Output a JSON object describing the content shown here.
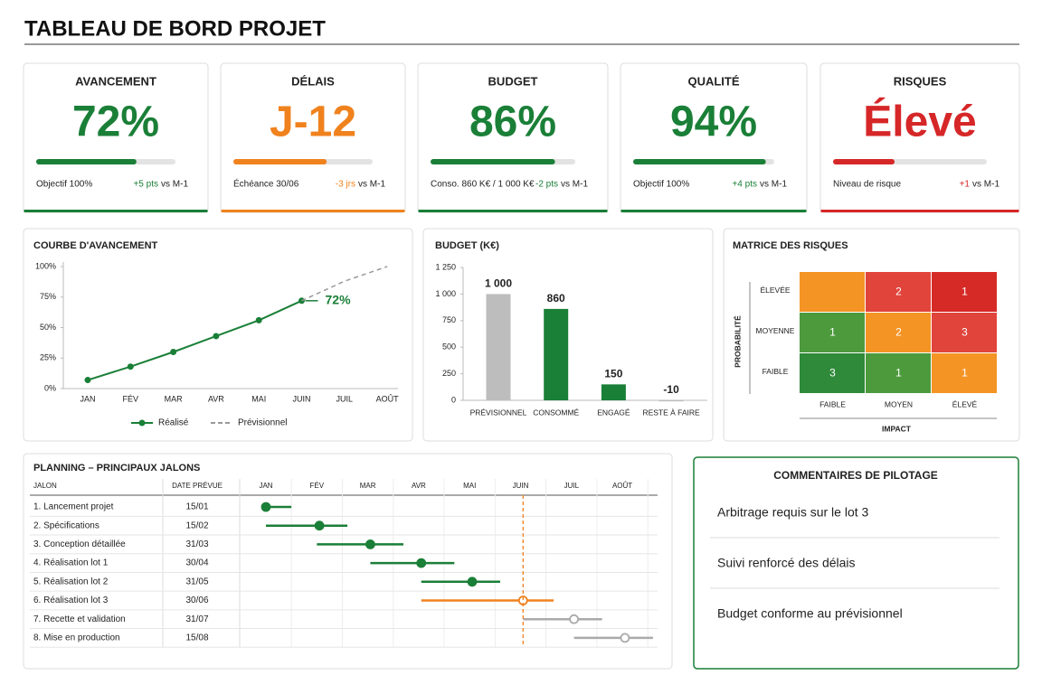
{
  "header": {
    "title": "TABLEAU DE BORD PROJET"
  },
  "kpis": [
    {
      "title": "AVANCEMENT",
      "value": 72,
      "value_label": "72%",
      "progress": 72,
      "color": "#1a7f37",
      "note": "Objectif 100%",
      "delta": "+5 pts",
      "delta_ref": "vs M-1"
    },
    {
      "title": "DÉLAIS",
      "value": "J-12",
      "progress": 67,
      "color": "#f0821e",
      "note": "Échéance 30/06",
      "delta": "-3 jrs",
      "delta_ref": "vs M-1"
    },
    {
      "title": "BUDGET",
      "value": 86,
      "value_label": "86%",
      "progress": 86,
      "color": "#1a7f37",
      "note": "Conso. 860 K€ / 1 000 K€",
      "delta": "-2 pts",
      "delta_ref": "vs M-1"
    },
    {
      "title": "QUALITÉ",
      "value": 94,
      "value_label": "94%",
      "progress": 94,
      "color": "#1a7f37",
      "note": "Objectif 100%",
      "delta": "+4 pts",
      "delta_ref": "vs M-1"
    },
    {
      "title": "RISQUES",
      "value": "Élevé",
      "progress": 40,
      "color": "#d62728",
      "note": "Niveau de risque",
      "delta": "+1",
      "delta_ref": "vs M-1"
    }
  ],
  "chart_data": [
    {
      "type": "line",
      "title": "COURBE D'AVANCEMENT",
      "categories": [
        "JAN",
        "FÉV",
        "MAR",
        "AVR",
        "MAI",
        "JUIN",
        "JUIL",
        "AOÛT"
      ],
      "series": [
        {
          "name": "Réalisé",
          "color": "#1a7f37",
          "values": [
            7,
            18,
            30,
            43,
            56,
            72,
            null,
            null
          ]
        },
        {
          "name": "Prévisionnel",
          "color": "#999999",
          "dashed": true,
          "values": [
            null,
            null,
            null,
            null,
            null,
            72,
            88,
            100
          ]
        }
      ],
      "annotation": "72%",
      "ylim": [
        0,
        100
      ],
      "yticks": [
        {
          "value": 0,
          "label": "0%"
        },
        {
          "value": 25,
          "label": "25%"
        },
        {
          "value": 50,
          "label": "50%"
        },
        {
          "value": 75,
          "label": "75%"
        },
        {
          "value": 100,
          "label": "100%"
        }
      ],
      "grid": false,
      "legend": "bottom"
    },
    {
      "type": "bar",
      "title": "BUDGET (K€)",
      "categories": [
        "PRÉVISIONNEL",
        "CONSOMMÉ",
        "ENGAGÉ",
        "RESTE À FAIRE"
      ],
      "values": [
        1000,
        860,
        150,
        -10
      ],
      "value_labels": [
        "1 000",
        "860",
        "150",
        "-10"
      ],
      "colors": [
        "#bdbdbd",
        "#1a7f37",
        "#1a7f37",
        "#bdbdbd"
      ],
      "ylim": [
        0,
        1250
      ],
      "yticks": [
        0,
        250,
        500,
        750,
        {
          "value": 1000,
          "label": "1 000"
        },
        {
          "value": 1250,
          "label": "1 250"
        }
      ],
      "grid": false
    }
  ],
  "risk_matrix": {
    "title": "MATRICE DES RISQUES",
    "y_label": "PROBABILITÉ",
    "x_label": "IMPACT",
    "rows": [
      "ÉLEVÉE",
      "MOYENNE",
      "FAIBLE"
    ],
    "columns": [
      "FAIBLE",
      "MOYEN",
      "ÉLEVÉ"
    ],
    "values": [
      [
        null,
        2,
        1
      ],
      [
        1,
        2,
        3
      ],
      [
        3,
        1,
        1
      ]
    ],
    "colors": [
      [
        "#f39425",
        "#e0443b",
        "#d62a26"
      ],
      [
        "#4c9a3c",
        "#f39425",
        "#e0443b"
      ],
      [
        "#2f8a3a",
        "#4c9a3c",
        "#f39425"
      ]
    ]
  },
  "planning": {
    "title": "PLANNING – PRINCIPAUX JALONS",
    "columns": [
      "JALON",
      "DATE PRÉVUE"
    ],
    "months": [
      "JAN",
      "FÉV",
      "MAR",
      "AVR",
      "MAI",
      "JUIN",
      "JUIL",
      "AOÛT"
    ],
    "today": 5.05,
    "today_color": "#f0821e",
    "rows": [
      {
        "name": "1. Lancement projet",
        "date": "15/01",
        "start": 0,
        "milestone": 0,
        "end": 0.5,
        "color": "#1a7f37",
        "done": true
      },
      {
        "name": "2. Spécifications",
        "date": "15/02",
        "start": 0,
        "milestone": 1.05,
        "end": 1.6,
        "color": "#1a7f37",
        "done": true
      },
      {
        "name": "3. Conception détaillée",
        "date": "31/03",
        "start": 1.0,
        "milestone": 2.05,
        "end": 2.7,
        "color": "#1a7f37",
        "done": true
      },
      {
        "name": "4. Réalisation lot 1",
        "date": "30/04",
        "start": 2.05,
        "milestone": 3.05,
        "end": 3.7,
        "color": "#1a7f37",
        "done": true
      },
      {
        "name": "5. Réalisation lot 2",
        "date": "31/05",
        "start": 3.05,
        "milestone": 4.05,
        "end": 4.6,
        "color": "#1a7f37",
        "done": true
      },
      {
        "name": "6. Réalisation lot 3",
        "date": "30/06",
        "start": 3.05,
        "milestone": 5.05,
        "end": 5.65,
        "color": "#f0821e",
        "done": false
      },
      {
        "name": "7. Recette et validation",
        "date": "31/07",
        "start": 5.05,
        "milestone": 6.05,
        "end": 6.6,
        "color": "#aaaaaa",
        "done": false
      },
      {
        "name": "8. Mise en production",
        "date": "15/08",
        "start": 6.05,
        "milestone": 7.05,
        "end": 7.6,
        "color": "#aaaaaa",
        "done": false
      }
    ]
  },
  "comments": {
    "title": "COMMENTAIRES DE PILOTAGE",
    "items": [
      "Arbitrage requis sur le lot 3",
      "Suivi renforcé des délais",
      "Budget conforme au prévisionnel"
    ]
  }
}
